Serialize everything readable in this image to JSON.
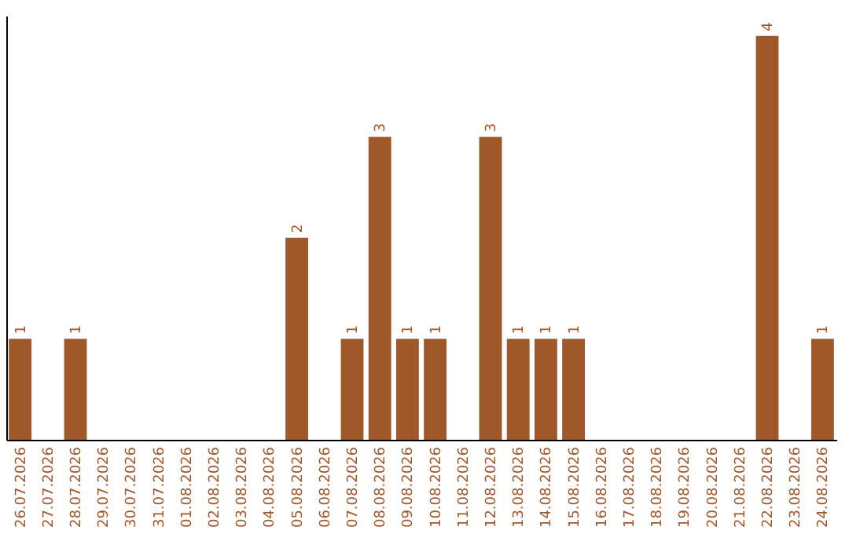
{
  "chart_data": {
    "type": "bar",
    "categories": [
      "26.07.2026",
      "27.07.2026",
      "28.07.2026",
      "29.07.2026",
      "30.07.2026",
      "31.07.2026",
      "01.08.2026",
      "02.08.2026",
      "03.08.2026",
      "04.08.2026",
      "05.08.2026",
      "06.08.2026",
      "07.08.2026",
      "08.08.2026",
      "09.08.2026",
      "10.08.2026",
      "11.08.2026",
      "12.08.2026",
      "13.08.2026",
      "14.08.2026",
      "15.08.2026",
      "16.08.2026",
      "17.08.2026",
      "18.08.2026",
      "19.08.2026",
      "20.08.2026",
      "21.08.2026",
      "22.08.2026",
      "23.08.2026",
      "24.08.2026"
    ],
    "values": [
      1,
      0,
      1,
      0,
      0,
      0,
      0,
      0,
      0,
      0,
      2,
      0,
      1,
      3,
      1,
      1,
      0,
      3,
      1,
      1,
      1,
      0,
      0,
      0,
      0,
      0,
      0,
      4,
      0,
      1
    ],
    "value_labels": [
      "1",
      null,
      "1",
      null,
      null,
      null,
      null,
      null,
      null,
      null,
      "2",
      null,
      "1",
      "3",
      "1",
      "1",
      null,
      "3",
      "1",
      "1",
      "1",
      null,
      null,
      null,
      null,
      null,
      null,
      "4",
      null,
      "1"
    ],
    "color": "#a0572a",
    "ylim": [
      0,
      4.2
    ],
    "tick_labels": "x",
    "grid": false
  }
}
